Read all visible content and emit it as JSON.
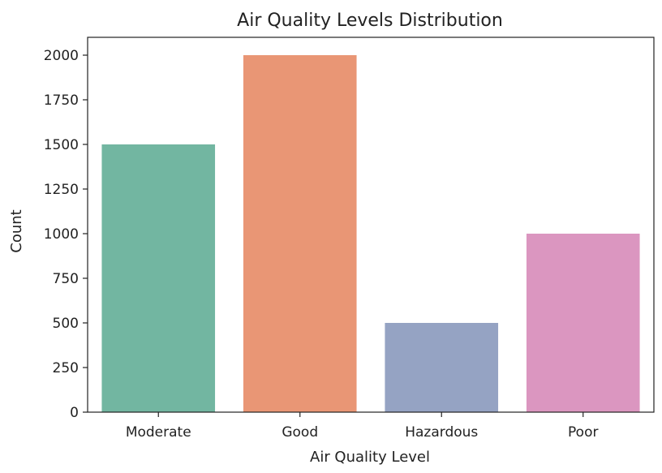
{
  "chart_data": {
    "type": "bar",
    "title": "Air Quality Levels Distribution",
    "xlabel": "Air Quality Level",
    "ylabel": "Count",
    "categories": [
      "Moderate",
      "Good",
      "Hazardous",
      "Poor"
    ],
    "values": [
      1500,
      2000,
      500,
      1000
    ],
    "colors": [
      "#72b6a1",
      "#e99675",
      "#95a3c3",
      "#db96c0"
    ],
    "ylim": [
      0,
      2100
    ],
    "yticks": [
      0,
      250,
      500,
      750,
      1000,
      1250,
      1500,
      1750,
      2000
    ],
    "grid": false,
    "legend": "none"
  }
}
